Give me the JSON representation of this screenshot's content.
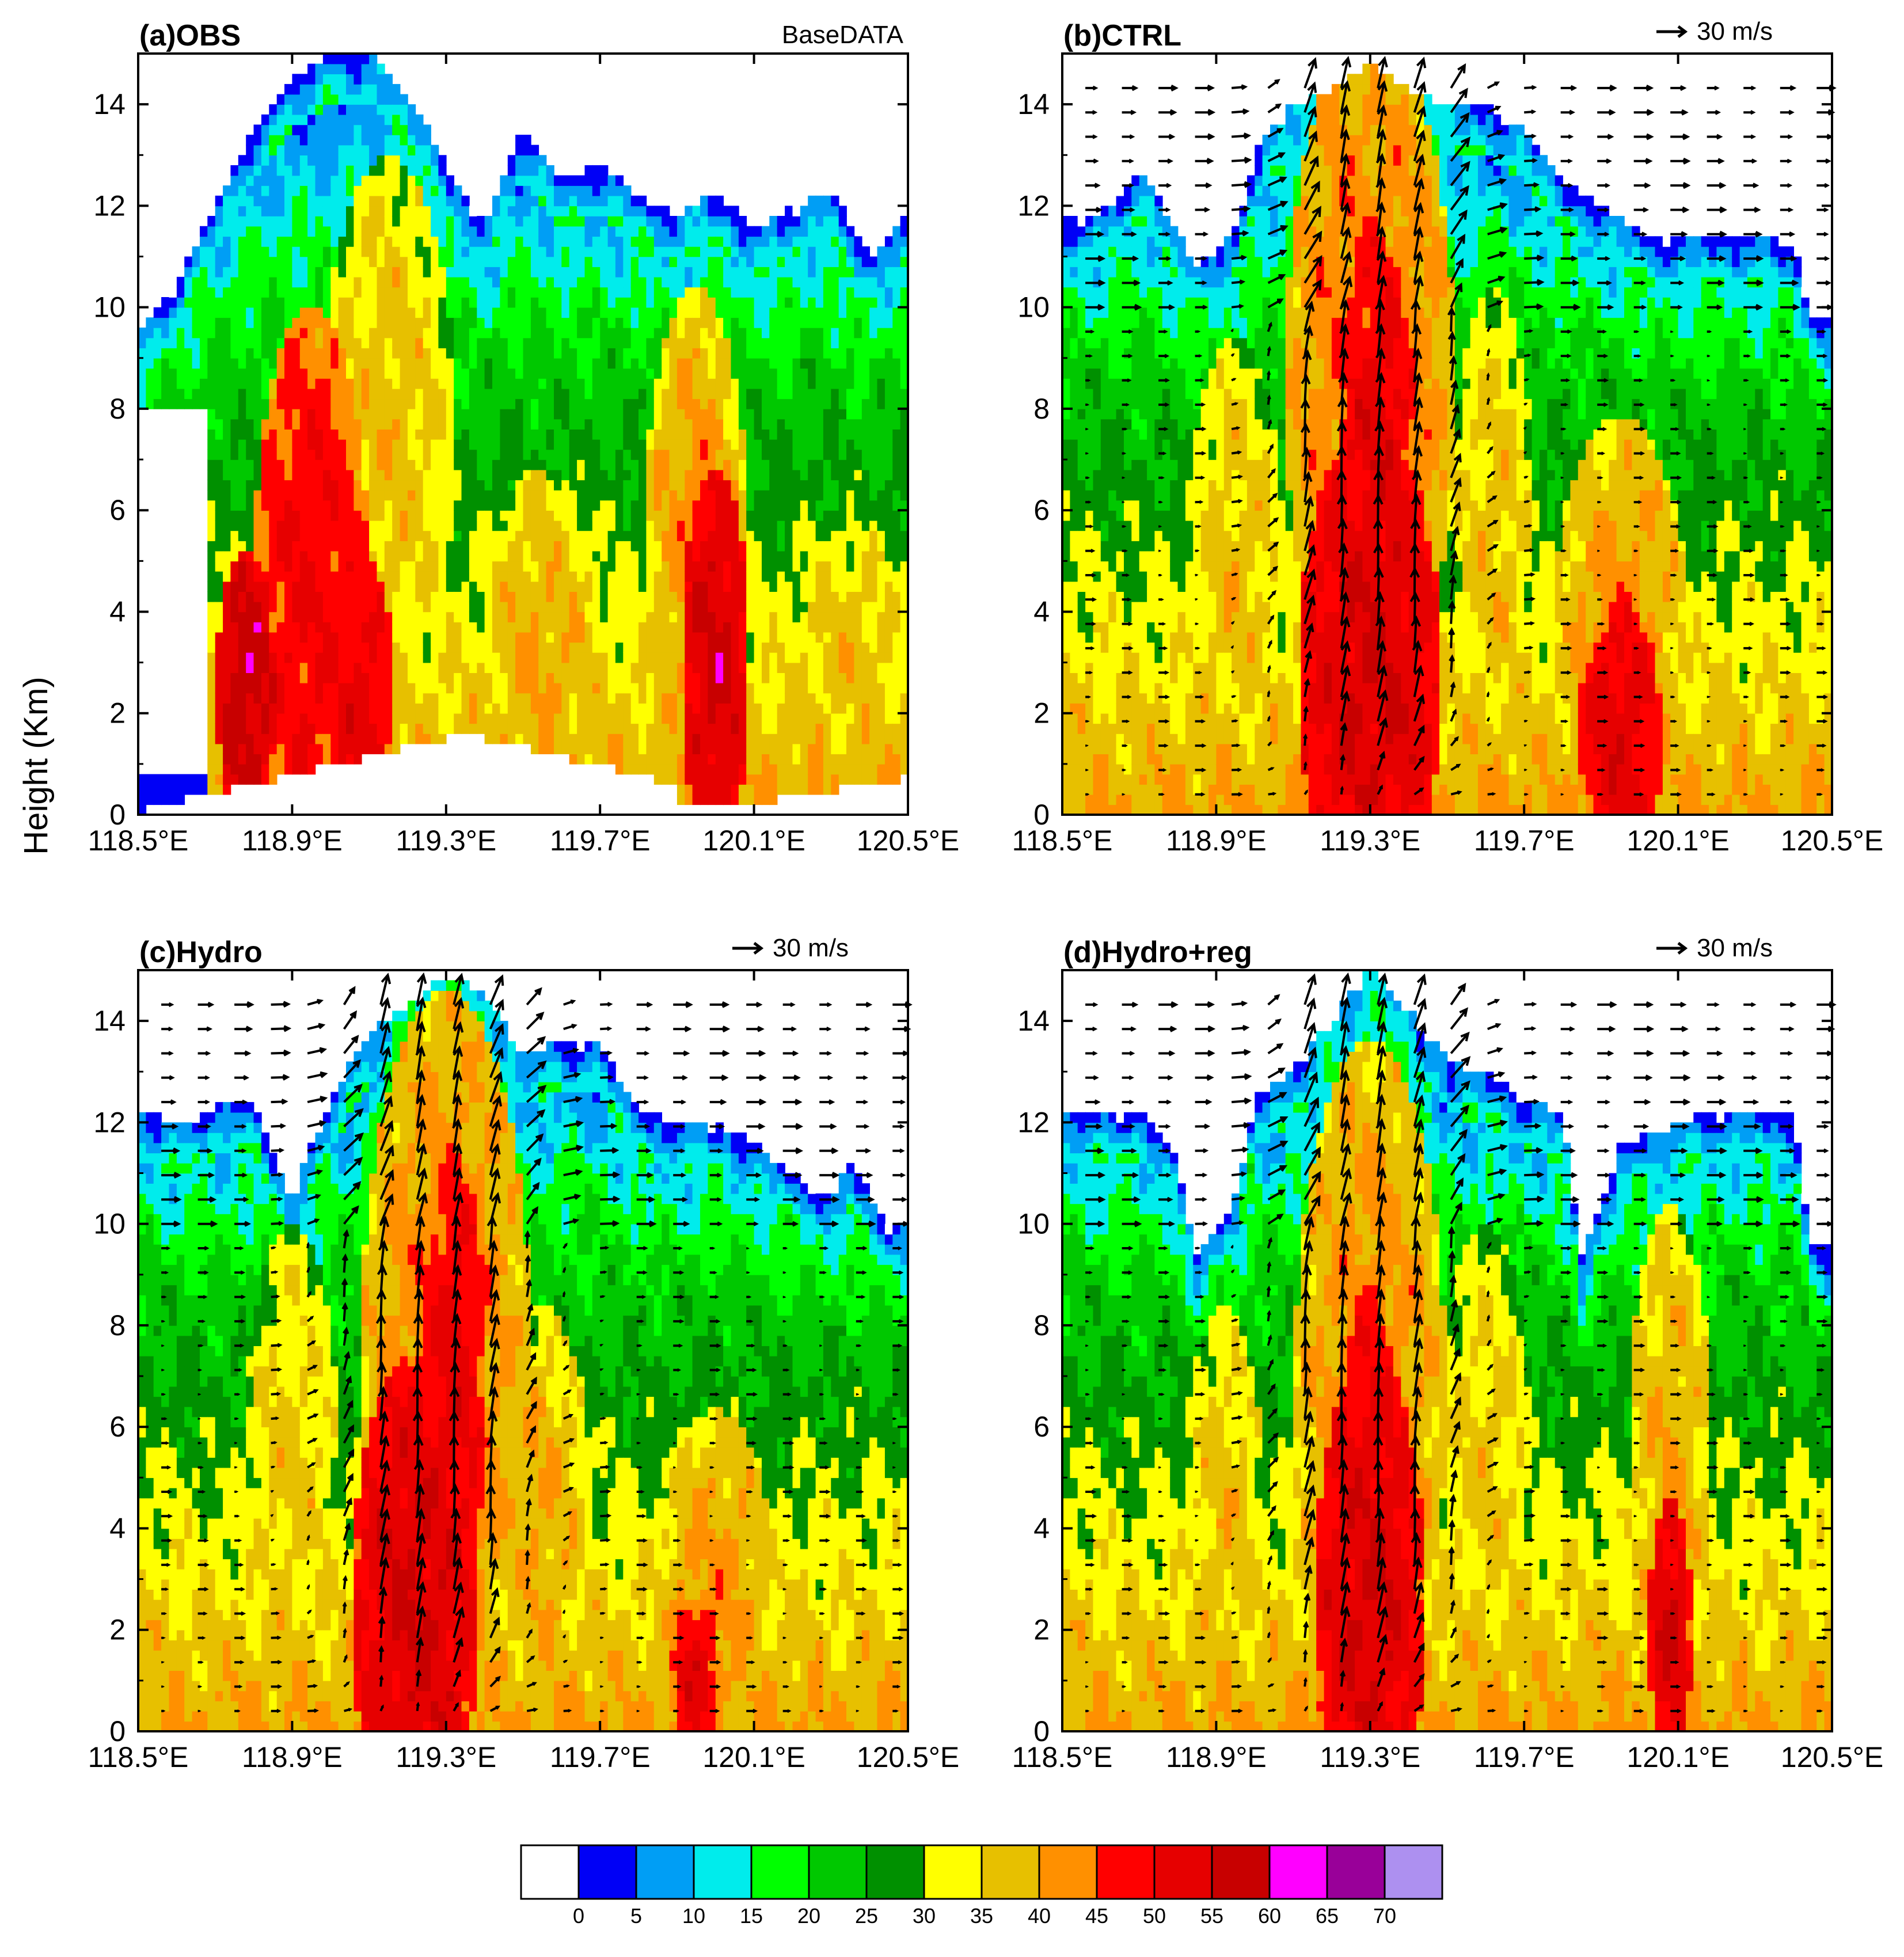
{
  "figure": {
    "y_axis_label": "Height (Km)",
    "x_tick_labels": [
      "118.5°E",
      "118.9°E",
      "119.3°E",
      "119.7°E",
      "120.1°E",
      "120.5°E"
    ],
    "y_tick_labels": [
      "0",
      "2",
      "4",
      "6",
      "8",
      "10",
      "12",
      "14"
    ],
    "vector_reference_label": "30 m/s"
  },
  "colorbar": {
    "colors": [
      "#ffffff",
      "#0000f6",
      "#009ef5",
      "#00ecec",
      "#00ff00",
      "#00c800",
      "#009000",
      "#ffff00",
      "#e7c000",
      "#ff9000",
      "#ff0000",
      "#e60000",
      "#c80000",
      "#ff00ff",
      "#990099",
      "#ad90f0"
    ],
    "labels": [
      "0",
      "5",
      "10",
      "15",
      "20",
      "25",
      "30",
      "35",
      "40",
      "45",
      "50",
      "55",
      "60",
      "65",
      "70"
    ]
  },
  "chart_data": [
    {
      "type": "heatmap",
      "title": "(a)OBS",
      "subtitle": "BaseDATA",
      "xlabel": "",
      "ylabel": "Height (Km)",
      "xlim": [
        118.5,
        120.5
      ],
      "ylim": [
        0,
        15
      ],
      "x_ticks": [
        118.5,
        118.9,
        119.3,
        119.7,
        120.1,
        120.5
      ],
      "y_ticks": [
        0,
        2,
        4,
        6,
        8,
        10,
        12,
        14
      ],
      "vectors": false,
      "echo_top": [
        [
          118.5,
          9.5
        ],
        [
          118.6,
          10.5
        ],
        [
          118.7,
          12.0
        ],
        [
          118.8,
          13.5
        ],
        [
          118.9,
          14.5
        ],
        [
          119.0,
          15.0
        ],
        [
          119.1,
          15.0
        ],
        [
          119.2,
          14.2
        ],
        [
          119.3,
          12.8
        ],
        [
          119.4,
          11.6
        ],
        [
          119.5,
          13.5
        ],
        [
          119.6,
          12.5
        ],
        [
          119.7,
          12.8
        ],
        [
          119.8,
          12.2
        ],
        [
          119.9,
          11.8
        ],
        [
          120.0,
          12.3
        ],
        [
          120.1,
          11.5
        ],
        [
          120.2,
          12.0
        ],
        [
          120.3,
          12.3
        ],
        [
          120.4,
          11.0
        ],
        [
          120.5,
          11.8
        ]
      ],
      "cores": [
        {
          "x": 118.78,
          "z": 2.5,
          "dbz": 58,
          "dx": 0.07,
          "dz": 2.5
        },
        {
          "x": 118.95,
          "z": 4.0,
          "dbz": 50,
          "dx": 0.14,
          "dz": 5.5
        },
        {
          "x": 119.08,
          "z": 2.0,
          "dbz": 52,
          "dx": 0.08,
          "dz": 3.0
        },
        {
          "x": 119.15,
          "z": 7.5,
          "dbz": 38,
          "dx": 0.16,
          "dz": 5.0
        },
        {
          "x": 119.55,
          "z": 3.0,
          "dbz": 40,
          "dx": 0.15,
          "dz": 3.5
        },
        {
          "x": 120.0,
          "z": 3.0,
          "dbz": 56,
          "dx": 0.08,
          "dz": 3.5
        },
        {
          "x": 119.95,
          "z": 5.5,
          "dbz": 42,
          "dx": 0.12,
          "dz": 4.5
        },
        {
          "x": 120.35,
          "z": 3.0,
          "dbz": 38,
          "dx": 0.15,
          "dz": 2.5
        }
      ]
    },
    {
      "type": "heatmap",
      "title": "(b)CTRL",
      "subtitle": "30 m/s",
      "xlabel": "",
      "ylabel": "",
      "xlim": [
        118.5,
        120.5
      ],
      "ylim": [
        0,
        15
      ],
      "x_ticks": [
        118.5,
        118.9,
        119.3,
        119.7,
        120.1,
        120.5
      ],
      "y_ticks": [
        0,
        2,
        4,
        6,
        8,
        10,
        12,
        14
      ],
      "vectors": true,
      "echo_top": [
        [
          118.5,
          11.7
        ],
        [
          118.6,
          11.8
        ],
        [
          118.7,
          12.8
        ],
        [
          118.8,
          11.5
        ],
        [
          118.85,
          10.8
        ],
        [
          118.95,
          11.5
        ],
        [
          119.0,
          13.0
        ],
        [
          119.1,
          14.0
        ],
        [
          119.2,
          14.3
        ],
        [
          119.3,
          14.8
        ],
        [
          119.4,
          14.3
        ],
        [
          119.5,
          14.0
        ],
        [
          119.6,
          14.0
        ],
        [
          119.7,
          13.5
        ],
        [
          119.8,
          12.5
        ],
        [
          119.9,
          12.0
        ],
        [
          120.0,
          11.5
        ],
        [
          120.1,
          11.3
        ],
        [
          120.2,
          11.4
        ],
        [
          120.3,
          11.4
        ],
        [
          120.4,
          11.2
        ],
        [
          120.45,
          9.8
        ],
        [
          120.5,
          9.8
        ]
      ],
      "cores": [
        {
          "x": 119.3,
          "z": 2.8,
          "dbz": 55,
          "dx": 0.17,
          "dz": 4.5
        },
        {
          "x": 119.32,
          "z": 7.0,
          "dbz": 53,
          "dx": 0.09,
          "dz": 4.0
        },
        {
          "x": 119.3,
          "z": 8.5,
          "dbz": 45,
          "dx": 0.2,
          "dz": 6.5
        },
        {
          "x": 119.95,
          "z": 1.5,
          "dbz": 53,
          "dx": 0.1,
          "dz": 2.5
        },
        {
          "x": 119.95,
          "z": 3.5,
          "dbz": 42,
          "dx": 0.16,
          "dz": 4.0
        },
        {
          "x": 118.95,
          "z": 4.5,
          "dbz": 38,
          "dx": 0.12,
          "dz": 4.5
        },
        {
          "x": 119.62,
          "z": 5.0,
          "dbz": 38,
          "dx": 0.1,
          "dz": 5.0
        }
      ]
    },
    {
      "type": "heatmap",
      "title": "(c)Hydro",
      "subtitle": "30 m/s",
      "xlabel": "",
      "ylabel": "",
      "xlim": [
        118.5,
        120.5
      ],
      "ylim": [
        0,
        15
      ],
      "x_ticks": [
        118.5,
        118.9,
        119.3,
        119.7,
        120.1,
        120.5
      ],
      "y_ticks": [
        0,
        2,
        4,
        6,
        8,
        10,
        12,
        14
      ],
      "vectors": true,
      "echo_top": [
        [
          118.5,
          12.3
        ],
        [
          118.6,
          12.0
        ],
        [
          118.7,
          12.3
        ],
        [
          118.8,
          12.4
        ],
        [
          118.9,
          10.5
        ],
        [
          119.0,
          12.5
        ],
        [
          119.1,
          13.8
        ],
        [
          119.2,
          14.3
        ],
        [
          119.3,
          14.9
        ],
        [
          119.4,
          14.5
        ],
        [
          119.5,
          13.3
        ],
        [
          119.6,
          13.6
        ],
        [
          119.7,
          13.5
        ],
        [
          119.8,
          12.2
        ],
        [
          119.9,
          12.0
        ],
        [
          120.0,
          12.0
        ],
        [
          120.1,
          11.6
        ],
        [
          120.2,
          11.0
        ],
        [
          120.3,
          10.5
        ],
        [
          120.35,
          11.2
        ],
        [
          120.45,
          10.0
        ],
        [
          120.5,
          10.0
        ]
      ],
      "cores": [
        {
          "x": 119.22,
          "z": 2.5,
          "dbz": 55,
          "dx": 0.15,
          "dz": 4.5
        },
        {
          "x": 119.32,
          "z": 6.5,
          "dbz": 52,
          "dx": 0.08,
          "dz": 4.5
        },
        {
          "x": 119.3,
          "z": 7.5,
          "dbz": 44,
          "dx": 0.2,
          "dz": 6.5
        },
        {
          "x": 119.95,
          "z": 1.0,
          "dbz": 52,
          "dx": 0.06,
          "dz": 1.5
        },
        {
          "x": 120.0,
          "z": 2.5,
          "dbz": 42,
          "dx": 0.14,
          "dz": 3.5
        },
        {
          "x": 119.55,
          "z": 4.0,
          "dbz": 40,
          "dx": 0.12,
          "dz": 4.0
        },
        {
          "x": 118.9,
          "z": 4.5,
          "dbz": 37,
          "dx": 0.12,
          "dz": 5.0
        }
      ]
    },
    {
      "type": "heatmap",
      "title": "(d)Hydro+reg",
      "subtitle": "30 m/s",
      "xlabel": "",
      "ylabel": "",
      "xlim": [
        118.5,
        120.5
      ],
      "ylim": [
        0,
        15
      ],
      "x_ticks": [
        118.5,
        118.9,
        119.3,
        119.7,
        120.1,
        120.5
      ],
      "y_ticks": [
        0,
        2,
        4,
        6,
        8,
        10,
        12,
        14
      ],
      "vectors": true,
      "echo_top": [
        [
          118.5,
          12.3
        ],
        [
          118.6,
          12.1
        ],
        [
          118.7,
          12.3
        ],
        [
          118.8,
          11.2
        ],
        [
          118.85,
          9.3
        ],
        [
          118.95,
          10.5
        ],
        [
          119.0,
          12.5
        ],
        [
          119.1,
          13.0
        ],
        [
          119.2,
          14.0
        ],
        [
          119.3,
          15.0
        ],
        [
          119.4,
          14.2
        ],
        [
          119.5,
          13.2
        ],
        [
          119.6,
          13.0
        ],
        [
          119.7,
          12.5
        ],
        [
          119.8,
          12.2
        ],
        [
          119.85,
          9.3
        ],
        [
          119.95,
          11.5
        ],
        [
          120.1,
          12.0
        ],
        [
          120.2,
          12.2
        ],
        [
          120.3,
          12.2
        ],
        [
          120.4,
          12.2
        ],
        [
          120.45,
          9.5
        ],
        [
          120.5,
          9.5
        ]
      ],
      "cores": [
        {
          "x": 119.3,
          "z": 2.5,
          "dbz": 55,
          "dx": 0.13,
          "dz": 4.5
        },
        {
          "x": 119.3,
          "z": 5.5,
          "dbz": 50,
          "dx": 0.08,
          "dz": 3.5
        },
        {
          "x": 119.3,
          "z": 6.5,
          "dbz": 43,
          "dx": 0.18,
          "dz": 6.5
        },
        {
          "x": 120.08,
          "z": 2.0,
          "dbz": 55,
          "dx": 0.05,
          "dz": 2.5
        },
        {
          "x": 120.08,
          "z": 5.0,
          "dbz": 40,
          "dx": 0.1,
          "dz": 5.0
        },
        {
          "x": 118.92,
          "z": 4.0,
          "dbz": 38,
          "dx": 0.1,
          "dz": 4.0
        },
        {
          "x": 119.6,
          "z": 4.5,
          "dbz": 37,
          "dx": 0.12,
          "dz": 5.0
        }
      ]
    }
  ]
}
